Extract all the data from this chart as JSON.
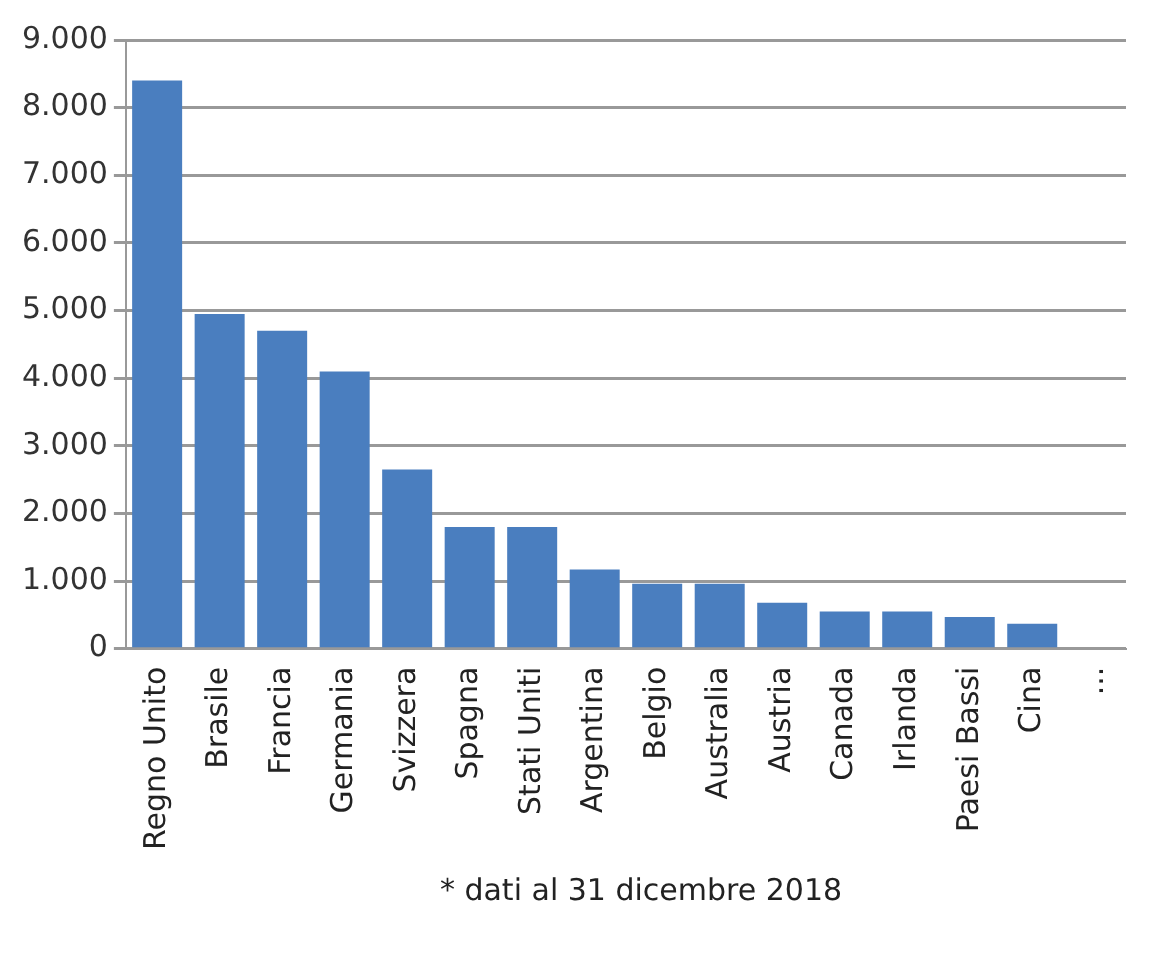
{
  "chart_data": {
    "type": "bar",
    "categories": [
      "Regno Unito",
      "Brasile",
      "Francia",
      "Germania",
      "Svizzera",
      "Spagna",
      "Stati Uniti",
      "Argentina",
      "Belgio",
      "Australia",
      "Austria",
      "Canada",
      "Irlanda",
      "Paesi Bassi",
      "Cina",
      "..."
    ],
    "values": [
      8400,
      4950,
      4700,
      4100,
      2650,
      1800,
      1800,
      1170,
      960,
      960,
      680,
      550,
      550,
      470,
      370,
      null
    ],
    "color": "#4a7ebf",
    "ylim": [
      0,
      9000
    ],
    "yticks": [
      {
        "value": 0,
        "label": "0"
      },
      {
        "value": 1000,
        "label": "1.000"
      },
      {
        "value": 2000,
        "label": "2.000"
      },
      {
        "value": 3000,
        "label": "3.000"
      },
      {
        "value": 4000,
        "label": "4.000"
      },
      {
        "value": 5000,
        "label": "5.000"
      },
      {
        "value": 6000,
        "label": "6.000"
      },
      {
        "value": 7000,
        "label": "7.000"
      },
      {
        "value": 8000,
        "label": "8.000"
      },
      {
        "value": 9000,
        "label": "9.000"
      }
    ],
    "grid": "y",
    "legend": false,
    "annotations": [
      "* dati al 31 dicembre 2018"
    ]
  }
}
